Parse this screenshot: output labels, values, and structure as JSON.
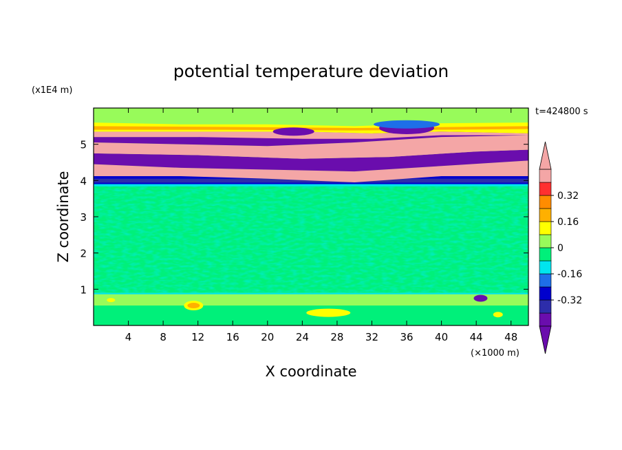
{
  "chart_data": {
    "type": "heatmap",
    "title": "potential temperature deviation",
    "xlabel": "X coordinate",
    "ylabel": "Z coordinate",
    "x_unit": "(×1000 m)",
    "y_unit": "(x1E4 m)",
    "time_label": "t=424800 s",
    "xlim": [
      0,
      50
    ],
    "ylim": [
      0,
      6
    ],
    "x_ticks": [
      4,
      8,
      12,
      16,
      20,
      24,
      28,
      32,
      36,
      40,
      44,
      48
    ],
    "y_ticks": [
      1,
      2,
      3,
      4,
      5
    ],
    "colorbar": {
      "levels": [
        -0.48,
        -0.4,
        -0.32,
        -0.24,
        -0.16,
        -0.08,
        0,
        0.08,
        0.16,
        0.24,
        0.32,
        0.4,
        0.48
      ],
      "labels": [
        "0.32",
        "0.16",
        "0",
        "-0.16",
        "-0.32"
      ],
      "label_values": [
        0.32,
        0.16,
        0,
        -0.16,
        -0.32
      ],
      "colors": [
        "#6a0dad",
        "#2d2daa",
        "#0000cd",
        "#1e6fe8",
        "#00e5ee",
        "#00f07a",
        "#98fb5a",
        "#ffff00",
        "#ffb000",
        "#ff8c00",
        "#ff3030",
        "#f4a6a6"
      ],
      "over_color": "#f4a6a6",
      "under_color": "#6a0dad"
    },
    "layers": [
      {
        "z": [
          0.0,
          0.9
        ],
        "dominant": "#98fb5a",
        "range": "-0.08 to 0.08 (near zero, scattered positive patches)"
      },
      {
        "z": [
          0.9,
          3.9
        ],
        "dominant": "#98fb5a",
        "range": "-0.08 to 0.08"
      },
      {
        "z": [
          3.9,
          4.1
        ],
        "dominant": "#0000cd",
        "range": "about -0.32"
      },
      {
        "z": [
          4.1,
          5.4
        ],
        "dominant": "alternating #f4a6a6 and #6a0dad",
        "range": "above 0.48 and below -0.48"
      },
      {
        "z": [
          5.4,
          5.6
        ],
        "dominant": "#ffff00",
        "range": "0.08 to 0.24"
      },
      {
        "z": [
          5.6,
          6.0
        ],
        "dominant": "#98fb5a",
        "range": "near 0"
      }
    ]
  }
}
